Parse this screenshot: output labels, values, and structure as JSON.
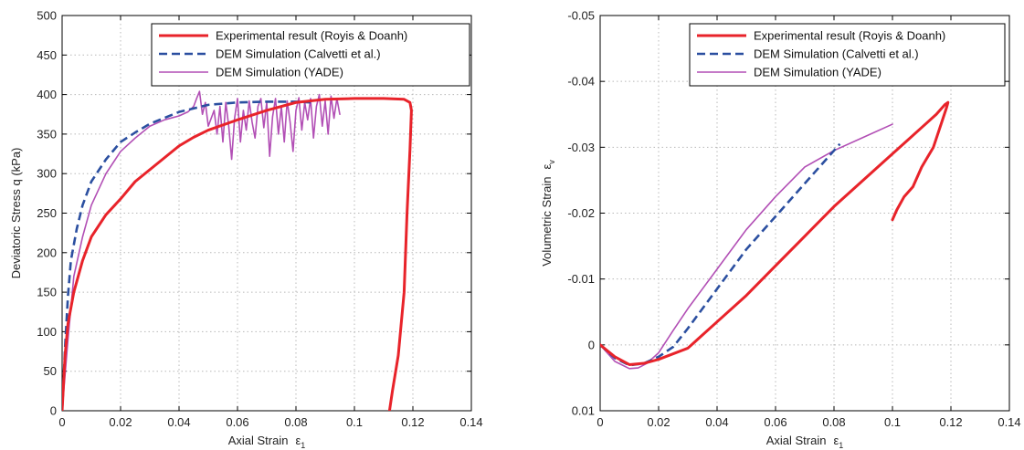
{
  "colors": {
    "experimental": "#e8232a",
    "dem_calvetti": "#2b4fa0",
    "dem_yade": "#b24fb5"
  },
  "chart_data": [
    {
      "type": "line",
      "xlabel": "Axial Strain",
      "xsymbol": "ε",
      "xsub": "1",
      "ylabel": "Deviatoric Stress q (kPa)",
      "xlim": [
        0,
        0.14
      ],
      "ylim": [
        0,
        500
      ],
      "xticks": [
        "0",
        "0.02",
        "0.04",
        "0.06",
        "0.08",
        "0.1",
        "0.12",
        "0.14"
      ],
      "yticks": [
        "0",
        "50",
        "100",
        "150",
        "200",
        "250",
        "300",
        "350",
        "400",
        "450",
        "500"
      ],
      "grid": true,
      "legend_position": "top-right",
      "series": [
        {
          "name": "Experimental result (Royis & Doanh)",
          "style": "solid",
          "points": [
            [
              0,
              0
            ],
            [
              0.001,
              70
            ],
            [
              0.002,
              110
            ],
            [
              0.004,
              150
            ],
            [
              0.007,
              190
            ],
            [
              0.01,
              220
            ],
            [
              0.015,
              248
            ],
            [
              0.02,
              268
            ],
            [
              0.025,
              290
            ],
            [
              0.03,
              305
            ],
            [
              0.035,
              320
            ],
            [
              0.04,
              335
            ],
            [
              0.045,
              346
            ],
            [
              0.05,
              355
            ],
            [
              0.06,
              368
            ],
            [
              0.07,
              380
            ],
            [
              0.08,
              390
            ],
            [
              0.09,
              394
            ],
            [
              0.1,
              395
            ],
            [
              0.11,
              395
            ],
            [
              0.117,
              394
            ],
            [
              0.119,
              390
            ],
            [
              0.1195,
              380
            ],
            [
              0.119,
              330
            ],
            [
              0.118,
              250
            ],
            [
              0.117,
              150
            ],
            [
              0.115,
              70
            ],
            [
              0.113,
              25
            ],
            [
              0.112,
              0
            ]
          ]
        },
        {
          "name": "DEM Simulation (Calvetti et al.)",
          "style": "dashed",
          "points": [
            [
              0,
              0
            ],
            [
              0.001,
              80
            ],
            [
              0.002,
              145
            ],
            [
              0.003,
              190
            ],
            [
              0.005,
              230
            ],
            [
              0.007,
              260
            ],
            [
              0.01,
              290
            ],
            [
              0.015,
              318
            ],
            [
              0.02,
              340
            ],
            [
              0.025,
              352
            ],
            [
              0.03,
              363
            ],
            [
              0.04,
              378
            ],
            [
              0.05,
              387
            ],
            [
              0.06,
              390
            ],
            [
              0.07,
              391
            ],
            [
              0.08,
              391
            ],
            [
              0.085,
              390
            ]
          ]
        },
        {
          "name": "DEM Simulation (YADE)",
          "style": "solid-thin",
          "points": [
            [
              0,
              0
            ],
            [
              0.002,
              90
            ],
            [
              0.004,
              170
            ],
            [
              0.007,
              220
            ],
            [
              0.01,
              260
            ],
            [
              0.015,
              300
            ],
            [
              0.02,
              328
            ],
            [
              0.025,
              345
            ],
            [
              0.03,
              360
            ],
            [
              0.035,
              368
            ],
            [
              0.04,
              373
            ],
            [
              0.043,
              378
            ],
            [
              0.045,
              385
            ],
            [
              0.046,
              395
            ],
            [
              0.047,
              404
            ],
            [
              0.048,
              375
            ],
            [
              0.049,
              390
            ],
            [
              0.05,
              360
            ],
            [
              0.052,
              380
            ],
            [
              0.053,
              350
            ],
            [
              0.054,
              385
            ],
            [
              0.055,
              340
            ],
            [
              0.056,
              390
            ],
            [
              0.057,
              360
            ],
            [
              0.058,
              318
            ],
            [
              0.059,
              370
            ],
            [
              0.06,
              395
            ],
            [
              0.061,
              340
            ],
            [
              0.062,
              380
            ],
            [
              0.063,
              355
            ],
            [
              0.064,
              392
            ],
            [
              0.065,
              365
            ],
            [
              0.066,
              345
            ],
            [
              0.067,
              385
            ],
            [
              0.068,
              395
            ],
            [
              0.069,
              358
            ],
            [
              0.07,
              390
            ],
            [
              0.071,
              322
            ],
            [
              0.072,
              372
            ],
            [
              0.073,
              395
            ],
            [
              0.074,
              350
            ],
            [
              0.075,
              385
            ],
            [
              0.076,
              340
            ],
            [
              0.077,
              392
            ],
            [
              0.078,
              365
            ],
            [
              0.079,
              328
            ],
            [
              0.08,
              380
            ],
            [
              0.081,
              396
            ],
            [
              0.082,
              355
            ],
            [
              0.083,
              390
            ],
            [
              0.084,
              368
            ],
            [
              0.085,
              395
            ],
            [
              0.086,
              345
            ],
            [
              0.087,
              385
            ],
            [
              0.088,
              400
            ],
            [
              0.089,
              360
            ],
            [
              0.09,
              392
            ],
            [
              0.091,
              350
            ],
            [
              0.092,
              398
            ],
            [
              0.093,
              370
            ],
            [
              0.094,
              395
            ],
            [
              0.095,
              375
            ]
          ]
        }
      ]
    },
    {
      "type": "line",
      "xlabel": "Axial Strain",
      "xsymbol": "ε",
      "xsub": "1",
      "ylabel": "Volumetric Strain",
      "ysymbol": "ε",
      "ysub": "v",
      "xlim": [
        0,
        0.14
      ],
      "ylim": [
        0.01,
        -0.05
      ],
      "xticks": [
        "0",
        "0.02",
        "0.04",
        "0.06",
        "0.08",
        "0.1",
        "0.12",
        "0.14"
      ],
      "yticks": [
        "0.01",
        "0",
        "-0.01",
        "-0.02",
        "-0.03",
        "-0.04",
        "-0.05"
      ],
      "grid": true,
      "legend_position": "top-right",
      "series": [
        {
          "name": "Experimental result (Royis & Doanh)",
          "style": "solid",
          "points": [
            [
              0,
              0
            ],
            [
              0.005,
              0.0018
            ],
            [
              0.01,
              0.003
            ],
            [
              0.015,
              0.0028
            ],
            [
              0.02,
              0.0022
            ],
            [
              0.03,
              0.0005
            ],
            [
              0.04,
              -0.0035
            ],
            [
              0.05,
              -0.0075
            ],
            [
              0.06,
              -0.012
            ],
            [
              0.07,
              -0.0165
            ],
            [
              0.08,
              -0.021
            ],
            [
              0.09,
              -0.025
            ],
            [
              0.1,
              -0.029
            ],
            [
              0.105,
              -0.031
            ],
            [
              0.11,
              -0.033
            ],
            [
              0.115,
              -0.035
            ],
            [
              0.118,
              -0.0365
            ],
            [
              0.119,
              -0.0368
            ],
            [
              0.1185,
              -0.036
            ],
            [
              0.117,
              -0.034
            ],
            [
              0.114,
              -0.03
            ],
            [
              0.11,
              -0.027
            ],
            [
              0.107,
              -0.024
            ],
            [
              0.104,
              -0.0225
            ],
            [
              0.1015,
              -0.0205
            ],
            [
              0.1,
              -0.019
            ]
          ]
        },
        {
          "name": "DEM Simulation (Calvetti et al.)",
          "style": "dashed",
          "points": [
            [
              0,
              0
            ],
            [
              0.005,
              0.002
            ],
            [
              0.01,
              0.0031
            ],
            [
              0.015,
              0.0028
            ],
            [
              0.02,
              0.0018
            ],
            [
              0.025,
              0.0003
            ],
            [
              0.03,
              -0.0025
            ],
            [
              0.04,
              -0.0085
            ],
            [
              0.05,
              -0.0145
            ],
            [
              0.06,
              -0.0195
            ],
            [
              0.07,
              -0.0245
            ],
            [
              0.075,
              -0.027
            ],
            [
              0.08,
              -0.0295
            ],
            [
              0.082,
              -0.0305
            ]
          ]
        },
        {
          "name": "DEM Simulation (YADE)",
          "style": "solid-thin",
          "points": [
            [
              0,
              0
            ],
            [
              0.005,
              0.0025
            ],
            [
              0.01,
              0.0036
            ],
            [
              0.013,
              0.0035
            ],
            [
              0.016,
              0.0028
            ],
            [
              0.02,
              0.0012
            ],
            [
              0.025,
              -0.0022
            ],
            [
              0.03,
              -0.0055
            ],
            [
              0.04,
              -0.0115
            ],
            [
              0.05,
              -0.0175
            ],
            [
              0.06,
              -0.0225
            ],
            [
              0.07,
              -0.027
            ],
            [
              0.08,
              -0.0295
            ],
            [
              0.09,
              -0.0315
            ],
            [
              0.1,
              -0.0335
            ]
          ]
        }
      ]
    }
  ]
}
